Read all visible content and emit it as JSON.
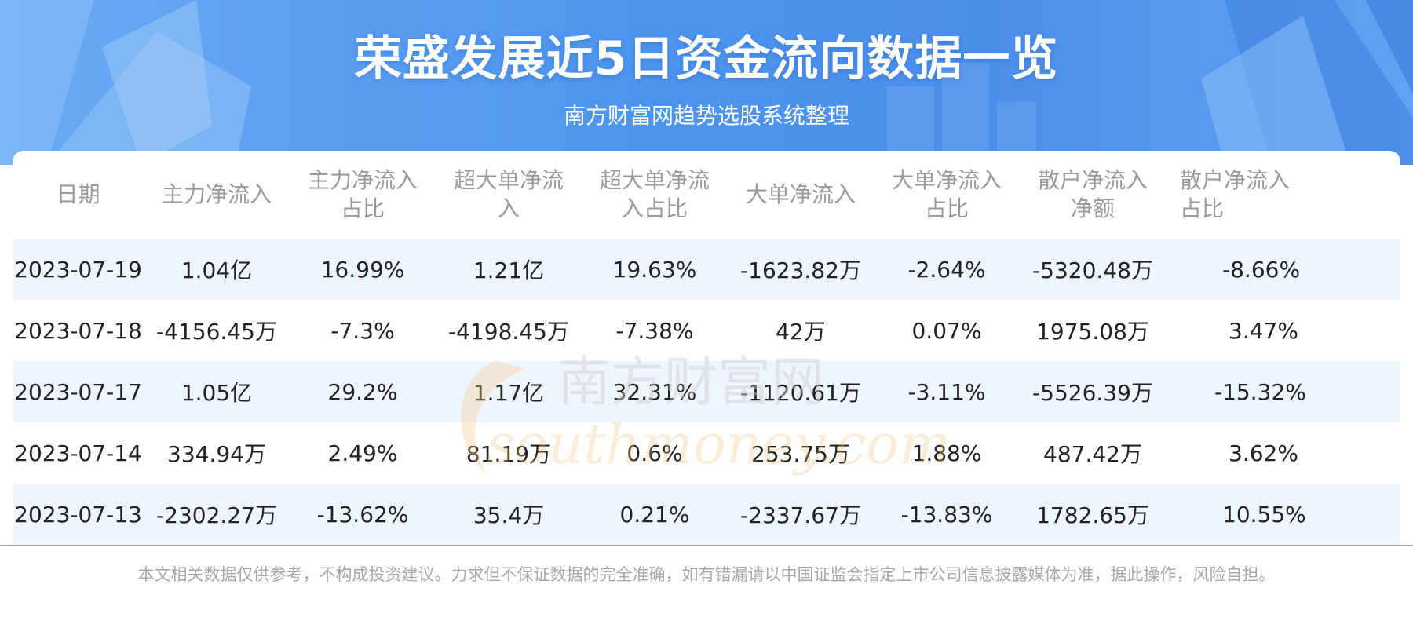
{
  "header": {
    "title": "荣盛发展近5日资金流向数据一览",
    "subtitle": "南方财富网趋势选股系统整理"
  },
  "table": {
    "columns": [
      [
        "日期"
      ],
      [
        "主力净流入"
      ],
      [
        "主力净流入",
        "占比"
      ],
      [
        "超大单净流",
        "入"
      ],
      [
        "超大单净流",
        "入占比"
      ],
      [
        "大单净流入"
      ],
      [
        "大单净流入",
        "占比"
      ],
      [
        "散户净流入",
        "净额"
      ],
      [
        "散户净流入",
        "占比"
      ]
    ],
    "rows": [
      [
        "2023-07-19",
        "1.04亿",
        "16.99%",
        "1.21亿",
        "19.63%",
        "-1623.82万",
        "-2.64%",
        "-5320.48万",
        "-8.66%"
      ],
      [
        "2023-07-18",
        "-4156.45万",
        "-7.3%",
        "-4198.45万",
        "-7.38%",
        "42万",
        "0.07%",
        "1975.08万",
        "3.47%"
      ],
      [
        "2023-07-17",
        "1.05亿",
        "29.2%",
        "1.17亿",
        "32.31%",
        "-1120.61万",
        "-3.11%",
        "-5526.39万",
        "-15.32%"
      ],
      [
        "2023-07-14",
        "334.94万",
        "2.49%",
        "81.19万",
        "0.6%",
        "253.75万",
        "1.88%",
        "487.42万",
        "3.62%"
      ],
      [
        "2023-07-13",
        "-2302.27万",
        "-13.62%",
        "35.4万",
        "0.21%",
        "-2337.67万",
        "-13.83%",
        "1782.65万",
        "10.55%"
      ]
    ]
  },
  "watermark": {
    "cn": "南方财富网",
    "en": "southmoney.com"
  },
  "footer": {
    "disclaimer": "本文相关数据仅供参考，不构成投资建议。力求但不保证数据的完全准确，如有错漏请以中国证监会指定上市公司信息披露媒体为准，据此操作，风险自担。"
  },
  "colors": {
    "banner": "#4e95ee",
    "row_stripe": "#eef5fe",
    "header_text": "#9a9a9a"
  }
}
